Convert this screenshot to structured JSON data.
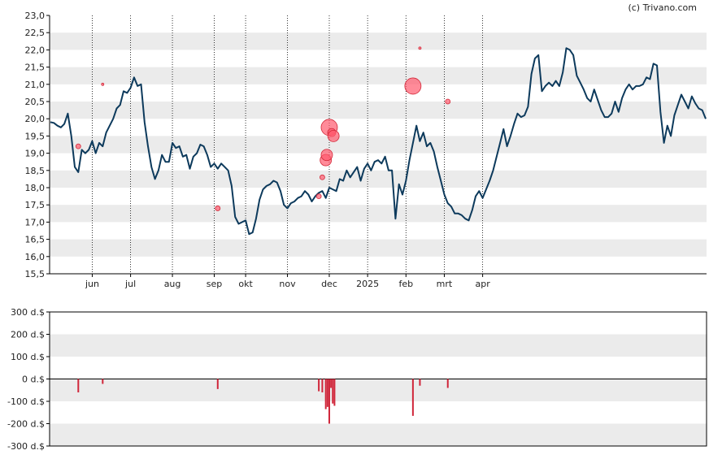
{
  "credit": "(c) Trivano.com",
  "colors": {
    "price_line": "#0d3a5c",
    "band": "#ebebeb",
    "bubble_fill": "#ff5a6e",
    "bubble_stroke": "#d22838",
    "bar": "#d0263a",
    "axis": "#000000",
    "vgrid": "#000000"
  },
  "chart_data": [
    {
      "type": "line",
      "title": "",
      "xlabel": "",
      "ylabel": "",
      "ylim": [
        15.5,
        23.0
      ],
      "y_tick_labels": [
        "15,5",
        "16,0",
        "16,5",
        "17,0",
        "17,5",
        "18,0",
        "18,5",
        "19,0",
        "19,5",
        "20,0",
        "20,5",
        "21,0",
        "21,5",
        "22,0",
        "22,5",
        "23,0"
      ],
      "x_tick_labels": [
        "jun",
        "jul",
        "aug",
        "sep",
        "okt",
        "nov",
        "dec",
        "2025",
        "feb",
        "mrt",
        "apr"
      ],
      "x_tick_index": [
        12,
        23,
        35,
        47,
        56,
        68,
        80,
        91,
        102,
        113,
        124
      ],
      "grid": "alternating horizontal bands, dotted vertical lines at month starts",
      "series": [
        {
          "values": [
            19.9,
            19.88,
            19.8,
            19.75,
            19.85,
            20.15,
            19.5,
            18.6,
            18.45,
            19.1,
            19.0,
            19.1,
            19.35,
            19.0,
            19.3,
            19.2,
            19.6,
            19.8,
            20.0,
            20.3,
            20.4,
            20.8,
            20.75,
            20.9,
            21.2,
            20.95,
            21.0,
            19.9,
            19.2,
            18.6,
            18.25,
            18.5,
            18.95,
            18.75,
            18.75,
            19.3,
            19.15,
            19.2,
            18.9,
            18.95,
            18.55,
            18.9,
            19.0,
            19.25,
            19.2,
            18.95,
            18.6,
            18.7,
            18.55,
            18.7,
            18.6,
            18.5,
            18.05,
            17.15,
            16.95,
            17.0,
            17.05,
            16.65,
            16.7,
            17.1,
            17.65,
            17.95,
            18.05,
            18.1,
            18.2,
            18.15,
            17.9,
            17.5,
            17.4,
            17.55,
            17.6,
            17.7,
            17.75,
            17.9,
            17.8,
            17.6,
            17.75,
            17.85,
            17.9,
            17.7,
            18.0,
            17.95,
            17.9,
            18.25,
            18.2,
            18.5,
            18.3,
            18.45,
            18.6,
            18.2,
            18.55,
            18.7,
            18.5,
            18.75,
            18.8,
            18.7,
            18.9,
            18.5,
            18.5,
            17.1,
            18.1,
            17.8,
            18.2,
            18.8,
            19.3,
            19.8,
            19.35,
            19.6,
            19.2,
            19.3,
            19.05,
            18.6,
            18.2,
            17.8,
            17.55,
            17.45,
            17.25,
            17.25,
            17.2,
            17.1,
            17.05,
            17.35,
            17.75,
            17.9,
            17.7,
            17.95,
            18.2,
            18.5,
            18.9,
            19.3,
            19.7,
            19.2,
            19.5,
            19.85,
            20.15,
            20.05,
            20.1,
            20.35,
            21.3,
            21.75,
            21.85,
            20.8,
            20.95,
            21.05,
            20.95,
            21.1,
            20.95,
            21.35,
            22.05,
            22.0,
            21.85,
            21.25,
            21.05,
            20.85,
            20.6,
            20.5,
            20.85,
            20.55,
            20.25,
            20.05,
            20.05,
            20.15,
            20.5,
            20.2,
            20.6,
            20.85,
            21.0,
            20.85,
            20.95,
            20.95,
            21.0,
            21.2,
            21.15,
            21.6,
            21.55,
            20.2,
            19.3,
            19.8,
            19.5,
            20.1,
            20.4,
            20.7,
            20.5,
            20.3,
            20.65,
            20.45,
            20.3,
            20.25,
            20.0
          ]
        }
      ],
      "bubbles": [
        {
          "index": 8,
          "value": 19.2,
          "size": 1
        },
        {
          "index": 15,
          "value": 21.0,
          "size": 0
        },
        {
          "index": 48,
          "value": 17.4,
          "size": 1
        },
        {
          "index": 77,
          "value": 17.75,
          "size": 1
        },
        {
          "index": 78,
          "value": 18.3,
          "size": 1
        },
        {
          "index": 79,
          "value": 18.8,
          "size": 3
        },
        {
          "index": 79.3,
          "value": 18.95,
          "size": 3
        },
        {
          "index": 80,
          "value": 19.75,
          "size": 4
        },
        {
          "index": 80.7,
          "value": 19.6,
          "size": 2
        },
        {
          "index": 81.2,
          "value": 19.5,
          "size": 3
        },
        {
          "index": 104,
          "value": 20.95,
          "size": 4
        },
        {
          "index": 106,
          "value": 22.05,
          "size": 0
        },
        {
          "index": 114,
          "value": 20.5,
          "size": 1
        }
      ]
    },
    {
      "type": "bar",
      "title": "",
      "xlabel": "",
      "ylabel": "",
      "ylim": [
        -300,
        300
      ],
      "y_tick_labels": [
        "300 d.$",
        "200 d.$",
        "100 d.$",
        "0 d.$",
        "-100 d.$",
        "-200 d.$",
        "-300 d.$"
      ],
      "bars": [
        {
          "index": 8,
          "value": -60
        },
        {
          "index": 15,
          "value": -22
        },
        {
          "index": 48,
          "value": -45
        },
        {
          "index": 77,
          "value": -55
        },
        {
          "index": 78,
          "value": -60
        },
        {
          "index": 79,
          "value": -135
        },
        {
          "index": 79.5,
          "value": -125
        },
        {
          "index": 80,
          "value": -200
        },
        {
          "index": 80.5,
          "value": -40
        },
        {
          "index": 81,
          "value": -110
        },
        {
          "index": 81.5,
          "value": -120
        },
        {
          "index": 104,
          "value": -165
        },
        {
          "index": 106,
          "value": -30
        },
        {
          "index": 114,
          "value": -40
        }
      ]
    }
  ]
}
